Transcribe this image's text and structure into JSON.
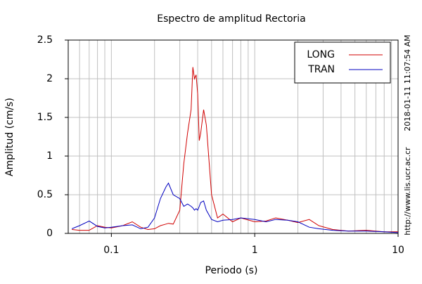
{
  "chart_data": {
    "type": "line",
    "title": "Espectro de amplitud Rectoria",
    "x_label": "Periodo (s)",
    "y_label": "Amplitud (cm/s)",
    "annotations": [
      "2018-01-11 11:07:54 AM",
      "http://www.lis.ucr.ac.cr"
    ],
    "x": [
      0.053,
      0.06,
      0.07,
      0.08,
      0.09,
      0.1,
      0.12,
      0.14,
      0.16,
      0.18,
      0.2,
      0.22,
      0.24,
      0.25,
      0.27,
      0.3,
      0.32,
      0.34,
      0.36,
      0.37,
      0.38,
      0.39,
      0.4,
      0.41,
      0.42,
      0.44,
      0.46,
      0.5,
      0.55,
      0.6,
      0.7,
      0.8,
      1,
      1.2,
      1.4,
      1.7,
      2,
      2.4,
      2.8,
      3.5,
      4.5,
      6,
      8,
      10
    ],
    "series": [
      {
        "name": "LONG",
        "color": "#d00000",
        "values": [
          0.05,
          0.04,
          0.04,
          0.1,
          0.08,
          0.07,
          0.1,
          0.15,
          0.08,
          0.05,
          0.06,
          0.1,
          0.12,
          0.13,
          0.12,
          0.3,
          0.9,
          1.3,
          1.6,
          2.15,
          2.0,
          2.05,
          1.8,
          1.2,
          1.3,
          1.6,
          1.4,
          0.5,
          0.2,
          0.25,
          0.15,
          0.2,
          0.15,
          0.16,
          0.2,
          0.17,
          0.14,
          0.18,
          0.1,
          0.05,
          0.03,
          0.04,
          0.02,
          0.02
        ]
      },
      {
        "name": "TRAN",
        "color": "#0000c0",
        "values": [
          0.06,
          0.1,
          0.16,
          0.09,
          0.07,
          0.08,
          0.1,
          0.11,
          0.06,
          0.08,
          0.2,
          0.45,
          0.6,
          0.65,
          0.5,
          0.45,
          0.35,
          0.38,
          0.35,
          0.33,
          0.3,
          0.32,
          0.3,
          0.35,
          0.4,
          0.42,
          0.3,
          0.18,
          0.15,
          0.17,
          0.18,
          0.2,
          0.18,
          0.15,
          0.18,
          0.17,
          0.15,
          0.08,
          0.06,
          0.04,
          0.03,
          0.03,
          0.02,
          0.01
        ]
      }
    ],
    "x_log": true,
    "xlim": [
      0.05,
      10
    ],
    "xticks": [
      0.1,
      1,
      10
    ],
    "xminorticks": [
      0.06,
      0.07,
      0.08,
      0.09,
      0.2,
      0.3,
      0.4,
      0.5,
      0.6,
      0.7,
      0.8,
      0.9,
      2,
      3,
      4,
      5,
      6,
      7,
      8,
      9
    ],
    "ylim": [
      0,
      2.5
    ],
    "yticks": [
      0,
      0.5,
      1,
      1.5,
      2,
      2.5
    ],
    "grid": true,
    "legend": "upper right"
  }
}
